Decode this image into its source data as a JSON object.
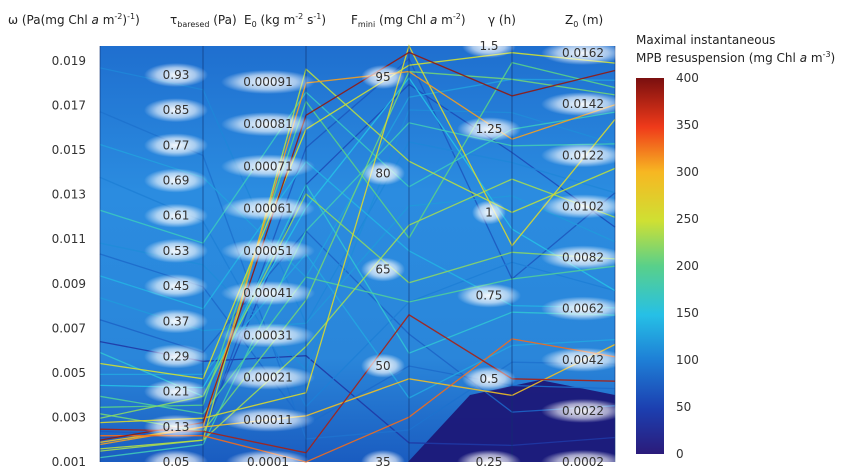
{
  "chart_data": {
    "type": "parallel_coordinates",
    "axes": [
      {
        "id": "omega",
        "label_parts": [
          "ω (Pa(mg Chl ",
          "a",
          " m",
          "-2",
          ")",
          "-1",
          ")"
        ],
        "ticks": [
          "0.001",
          "0.003",
          "0.005",
          "0.007",
          "0.009",
          "0.011",
          "0.013",
          "0.015",
          "0.017",
          "0.019"
        ],
        "range": [
          0.001,
          0.02
        ]
      },
      {
        "id": "tau",
        "label_parts": [
          "τ",
          "baresed",
          " (Pa)"
        ],
        "ticks": [
          "0.05",
          "0.13",
          "0.21",
          "0.29",
          "0.37",
          "0.45",
          "0.53",
          "0.61",
          "0.69",
          "0.77",
          "0.85",
          "0.93"
        ],
        "range": [
          0.05,
          1.0
        ]
      },
      {
        "id": "E0",
        "label_parts": [
          "E",
          "0",
          " (kg m",
          "-2",
          " s",
          "-1",
          ")"
        ],
        "ticks": [
          "0.0001",
          "0.00011",
          "0.00021",
          "0.00031",
          "0.00041",
          "0.00051",
          "0.00061",
          "0.00071",
          "0.00081",
          "0.00091"
        ],
        "range": [
          0.0001,
          0.001
        ]
      },
      {
        "id": "Fmini",
        "label_parts": [
          "F",
          "mini",
          "  (mg Chl ",
          "a",
          " m",
          "-2",
          ")"
        ],
        "ticks": [
          "35",
          "50",
          "65",
          "80",
          "95"
        ],
        "range": [
          35,
          100
        ]
      },
      {
        "id": "gamma",
        "label_parts": [
          "γ (h)"
        ],
        "ticks": [
          "0.25",
          "0.5",
          "0.75",
          "1",
          "1.25",
          "1.5"
        ],
        "range": [
          0.25,
          1.5
        ]
      },
      {
        "id": "Z0",
        "label_parts": [
          "Z",
          "0",
          " (m)"
        ],
        "ticks": [
          "0.0002",
          "0.0022",
          "0.0042",
          "0.0062",
          "0.0082",
          "0.0102",
          "0.0122",
          "0.0142",
          "0.0162"
        ],
        "range": [
          0.0002,
          0.0172
        ]
      }
    ],
    "colorbar": {
      "title_line1": "Maximal instantaneous",
      "title_line2_parts": [
        "MPB resuspension (mg Chl ",
        "a",
        " m",
        "-3",
        ")"
      ],
      "ticks": [
        "0",
        "50",
        "100",
        "150",
        "200",
        "250",
        "300",
        "350",
        "400"
      ],
      "range": [
        0,
        400
      ]
    },
    "series": [
      {
        "values": [
          0.0025,
          0.12,
          0.00012,
          58,
          0.5,
          0.0035
        ],
        "color_value": 380
      },
      {
        "values": [
          0.0022,
          0.11,
          0.0001,
          42,
          0.62,
          0.0045
        ],
        "color_value": 330
      },
      {
        "values": [
          0.0019,
          0.13,
          0.0002,
          48,
          0.45,
          0.005
        ],
        "color_value": 290
      },
      {
        "values": [
          0.0028,
          0.15,
          0.00025,
          100,
          0.9,
          0.0142
        ],
        "color_value": 260
      },
      {
        "values": [
          0.0015,
          0.1,
          0.00035,
          72,
          1.1,
          0.0102
        ],
        "color_value": 230
      },
      {
        "values": [
          0.0032,
          0.12,
          0.00045,
          96,
          1.4,
          0.0152
        ],
        "color_value": 210
      },
      {
        "values": [
          0.004,
          0.16,
          0.0005,
          60,
          0.8,
          0.0082
        ],
        "color_value": 190
      },
      {
        "values": [
          0.0012,
          0.09,
          0.0006,
          88,
          1.2,
          0.0132
        ],
        "color_value": 175
      },
      {
        "values": [
          0.006,
          0.2,
          0.0007,
          52,
          0.7,
          0.0062
        ],
        "color_value": 160
      },
      {
        "values": [
          0.002,
          0.14,
          0.00085,
          99,
          1.35,
          0.0162
        ],
        "color_value": 390
      },
      {
        "values": [
          0.0018,
          0.13,
          0.00092,
          96,
          1.22,
          0.0148
        ],
        "color_value": 310
      },
      {
        "values": [
          0.0024,
          0.11,
          0.00078,
          98,
          0.8,
          0.0112
        ],
        "color_value": 70
      },
      {
        "values": [
          0.0021,
          0.12,
          0.0007,
          94,
          1.18,
          0.0098
        ],
        "color_value": 60
      },
      {
        "values": [
          0.0016,
          0.1,
          0.00095,
          82,
          1.0,
          0.0122
        ],
        "color_value": 240
      },
      {
        "values": [
          0.0035,
          0.18,
          0.00088,
          70,
          1.45,
          0.0155
        ],
        "color_value": 200
      },
      {
        "values": [
          0.0045,
          0.22,
          0.00065,
          95,
          0.95,
          0.0072
        ],
        "color_value": 150
      },
      {
        "values": [
          0.005,
          0.25,
          0.00055,
          45,
          0.6,
          0.0052
        ],
        "color_value": 130
      },
      {
        "values": [
          0.0085,
          0.35,
          0.0004,
          75,
          1.05,
          0.0092
        ],
        "color_value": 120
      },
      {
        "values": [
          0.011,
          0.5,
          0.0003,
          90,
          1.3,
          0.0132
        ],
        "color_value": 110
      },
      {
        "values": [
          0.014,
          0.6,
          0.00022,
          60,
          0.85,
          0.0072
        ],
        "color_value": 100
      },
      {
        "values": [
          0.017,
          0.75,
          0.00015,
          40,
          0.55,
          0.0042
        ],
        "color_value": 90
      },
      {
        "values": [
          0.019,
          0.9,
          0.0004,
          85,
          1.15,
          0.0112
        ],
        "color_value": 105
      },
      {
        "values": [
          0.0075,
          0.3,
          0.0006,
          55,
          0.4,
          0.0025
        ],
        "color_value": 80
      },
      {
        "values": [
          0.0095,
          0.4,
          0.00075,
          68,
          0.72,
          0.0065
        ],
        "color_value": 140
      },
      {
        "values": [
          0.0125,
          0.55,
          0.0009,
          78,
          1.25,
          0.0145
        ],
        "color_value": 170
      },
      {
        "values": [
          0.0155,
          0.7,
          0.0005,
          92,
          1.4,
          0.0158
        ],
        "color_value": 125
      },
      {
        "values": [
          0.0065,
          0.28,
          0.00033,
          38,
          0.3,
          0.0012
        ],
        "color_value": 40
      },
      {
        "values": [
          0.0105,
          0.45,
          0.00018,
          50,
          0.48,
          0.0032
        ],
        "color_value": 85
      },
      {
        "values": [
          0.003,
          0.2,
          0.00068,
          63,
          0.88,
          0.0085
        ],
        "color_value": 220
      },
      {
        "values": [
          0.0055,
          0.24,
          0.00082,
          97,
          1.48,
          0.0165
        ],
        "color_value": 250
      }
    ]
  }
}
